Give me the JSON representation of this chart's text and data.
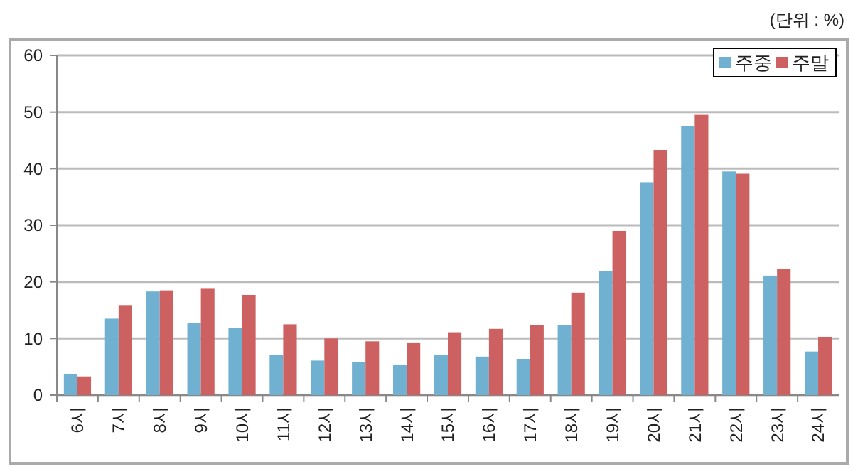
{
  "chart_data": {
    "type": "bar",
    "annotations": [
      "(단위 : %)"
    ],
    "categories": [
      "6시",
      "7시",
      "8시",
      "9시",
      "10시",
      "11시",
      "12시",
      "13시",
      "14시",
      "15시",
      "16시",
      "17시",
      "18시",
      "19시",
      "20시",
      "21시",
      "22시",
      "23시",
      "24시"
    ],
    "series": [
      {
        "name": "주중",
        "color": "#70b0d0",
        "values": [
          3.7,
          13.5,
          18.3,
          12.7,
          11.9,
          7.1,
          6.1,
          5.9,
          5.3,
          7.1,
          6.8,
          6.4,
          12.3,
          21.9,
          37.6,
          47.5,
          39.5,
          21.1,
          7.7
        ]
      },
      {
        "name": "주말",
        "color": "#cd6060",
        "values": [
          3.3,
          15.9,
          18.5,
          18.9,
          17.7,
          12.5,
          10.0,
          9.5,
          9.3,
          11.1,
          11.7,
          12.3,
          18.1,
          29.0,
          43.3,
          49.5,
          39.1,
          22.3,
          10.3
        ]
      }
    ],
    "ylim": [
      0,
      60
    ],
    "yticks": [
      0,
      10,
      20,
      30,
      40,
      50,
      60
    ],
    "grid": "y",
    "legend": "top right"
  }
}
